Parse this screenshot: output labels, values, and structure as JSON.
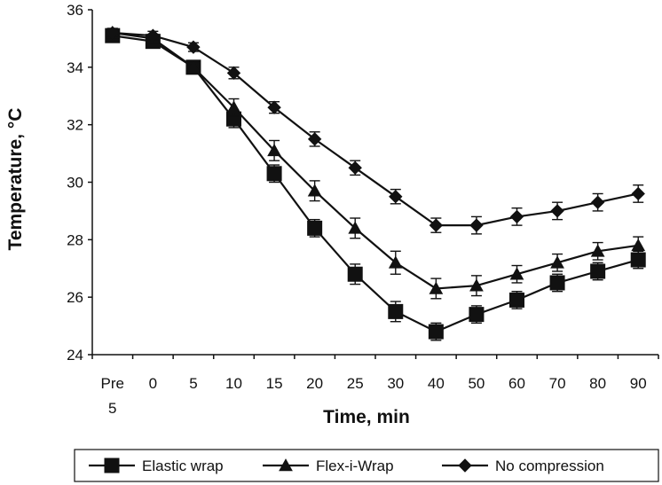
{
  "chart_data": {
    "type": "line",
    "title": "",
    "xlabel": "Time, min",
    "ylabel": "Temperature, °C",
    "categories": [
      [
        "Pre",
        "5"
      ],
      "0",
      "5",
      "10",
      "15",
      "20",
      "25",
      "30",
      "40",
      "50",
      "60",
      "70",
      "80",
      "90"
    ],
    "ylim": [
      24,
      36
    ],
    "yticks": [
      "24",
      "26",
      "28",
      "30",
      "32",
      "34",
      "36"
    ],
    "grid": false,
    "legend_position": "bottom",
    "series": [
      {
        "name": "Elastic wrap",
        "marker": "square",
        "values": [
          35.1,
          34.9,
          34.0,
          32.2,
          30.3,
          28.4,
          26.8,
          25.5,
          24.8,
          25.4,
          25.9,
          26.5,
          26.9,
          27.3
        ],
        "errors": [
          0.15,
          0.15,
          0.2,
          0.3,
          0.3,
          0.3,
          0.35,
          0.35,
          0.3,
          0.3,
          0.3,
          0.3,
          0.3,
          0.3
        ]
      },
      {
        "name": "Flex-i-Wrap",
        "marker": "triangle",
        "values": [
          35.2,
          35.0,
          34.0,
          32.6,
          31.1,
          29.7,
          28.4,
          27.2,
          26.3,
          26.4,
          26.8,
          27.2,
          27.6,
          27.8
        ],
        "errors": [
          0.15,
          0.15,
          0.2,
          0.3,
          0.35,
          0.35,
          0.35,
          0.4,
          0.35,
          0.35,
          0.3,
          0.3,
          0.3,
          0.3
        ]
      },
      {
        "name": "No compression",
        "marker": "diamond",
        "values": [
          35.2,
          35.1,
          34.7,
          33.8,
          32.6,
          31.5,
          30.5,
          29.5,
          28.5,
          28.5,
          28.8,
          29.0,
          29.3,
          29.6
        ],
        "errors": [
          0.15,
          0.15,
          0.15,
          0.2,
          0.2,
          0.25,
          0.25,
          0.25,
          0.25,
          0.3,
          0.3,
          0.3,
          0.3,
          0.3
        ]
      }
    ]
  }
}
